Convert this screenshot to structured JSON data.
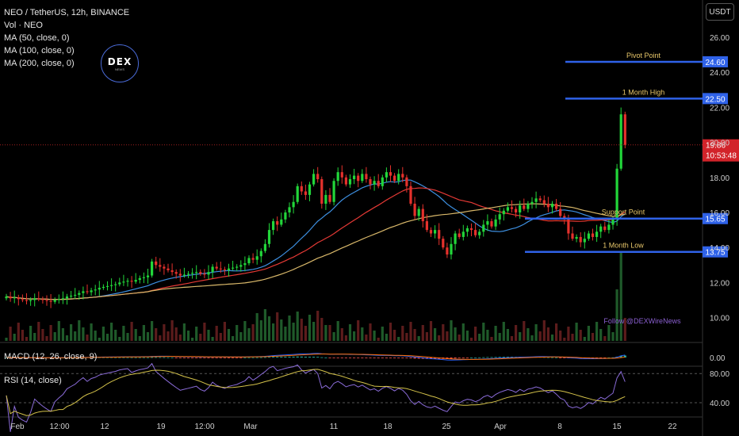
{
  "legend": {
    "symbol": "NEO / TetherUS, 12h, BINANCE",
    "vol": "Vol · NEO",
    "ma50": "MA (50, close, 0)",
    "ma100": "MA (100, close, 0)",
    "ma200": "MA (200, close, 0)"
  },
  "macd_label": "MACD (12, 26, close, 9)",
  "rsi_label": "RSI (14, close)",
  "currency": "USDT",
  "logo": {
    "text": "DEX",
    "sub": "NEWS"
  },
  "watermark": "Follow @DEXWireNews",
  "colors": {
    "up": "#22d63a",
    "down": "#e5312c",
    "ma50": "#3d8fe0",
    "ma100": "#e53935",
    "ma200": "#d9b86a",
    "level": "#2f62e8",
    "rsi": "#8a6bd8",
    "rsi_ma": "#d4c24a",
    "background": "#000000"
  },
  "chart_data": {
    "type": "candlestick",
    "price_axis_ticks": [
      "26.00",
      "24.00",
      "22.00",
      "20.00",
      "18.00",
      "16.00",
      "14.00",
      "12.00",
      "10.00"
    ],
    "macd_axis_ticks": [
      "0.00"
    ],
    "rsi_axis_ticks": [
      "80.00",
      "40.00"
    ],
    "x_tick_labels": [
      "Feb",
      "12:00",
      "12",
      "19",
      "12:00",
      "Mar",
      "11",
      "18",
      "25",
      "Apr",
      "8",
      "15",
      "22"
    ],
    "levels": [
      {
        "label": "Pivot Point",
        "value": 24.6,
        "tag": "24.60"
      },
      {
        "label": "1 Month High",
        "value": 22.5,
        "tag": "22.50"
      },
      {
        "label": "Support Point",
        "value": 15.65,
        "tag": "15.65"
      },
      {
        "label": "1 Month Low",
        "value": 13.75,
        "tag": "13.75"
      }
    ],
    "last_price": {
      "value": 19.86,
      "tag": "19.86",
      "countdown": "10:53:48"
    },
    "close": [
      11.2,
      11.1,
      11.15,
      11.05,
      11.0,
      10.95,
      11.0,
      11.1,
      11.05,
      11.0,
      10.95,
      10.9,
      11.0,
      11.05,
      11.1,
      11.2,
      11.25,
      11.3,
      11.4,
      11.5,
      11.45,
      11.55,
      11.6,
      11.7,
      11.75,
      11.8,
      11.85,
      11.9,
      12.0,
      12.05,
      12.1,
      12.05,
      12.15,
      12.25,
      12.3,
      12.4,
      13.2,
      13.0,
      12.9,
      12.8,
      12.7,
      12.6,
      12.5,
      12.4,
      12.45,
      12.5,
      12.55,
      12.6,
      12.5,
      12.45,
      12.6,
      12.9,
      12.8,
      12.75,
      12.7,
      12.8,
      12.85,
      12.9,
      13.0,
      13.1,
      13.4,
      13.3,
      13.5,
      13.8,
      14.2,
      15.0,
      15.5,
      15.3,
      15.6,
      16.0,
      16.3,
      16.6,
      17.5,
      17.2,
      17.0,
      17.6,
      18.2,
      17.9,
      16.5,
      17.0,
      16.6,
      17.8,
      18.3,
      18.0,
      17.6,
      17.9,
      18.1,
      17.8,
      18.2,
      17.9,
      17.6,
      17.8,
      17.5,
      18.0,
      18.3,
      18.1,
      17.8,
      18.2,
      18.0,
      17.5,
      16.5,
      15.8,
      16.2,
      15.5,
      15.0,
      14.8,
      15.0,
      14.5,
      14.0,
      13.6,
      14.2,
      14.8,
      14.6,
      14.9,
      15.1,
      15.0,
      14.7,
      14.9,
      15.3,
      15.5,
      15.2,
      15.6,
      15.9,
      16.1,
      16.3,
      16.2,
      16.0,
      16.4,
      16.2,
      16.5,
      16.6,
      16.8,
      16.7,
      16.5,
      16.3,
      16.5,
      16.2,
      15.8,
      15.6,
      14.8,
      14.5,
      14.6,
      14.3,
      14.5,
      14.8,
      14.6,
      14.9,
      15.2,
      15.0,
      15.3,
      15.6,
      18.5,
      21.6,
      19.86
    ]
  }
}
